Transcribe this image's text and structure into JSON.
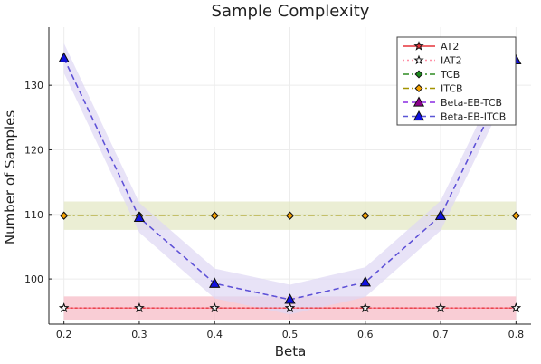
{
  "chart_data": {
    "type": "line",
    "title": "Sample Complexity",
    "xlabel": "Beta",
    "ylabel": "Number of Samples",
    "x": [
      0.2,
      0.3,
      0.4,
      0.5,
      0.6,
      0.7,
      0.8
    ],
    "xlim": [
      0.18,
      0.82
    ],
    "ylim": [
      93,
      139
    ],
    "xticks": [
      "0.2",
      "0.3",
      "0.4",
      "0.5",
      "0.6",
      "0.7",
      "0.8"
    ],
    "yticks": [
      100,
      110,
      120,
      130
    ],
    "grid": true,
    "legend_position": "top-right",
    "series": [
      {
        "name": "AT2",
        "values": [
          95.5,
          95.5,
          95.5,
          95.5,
          95.5,
          95.5,
          95.5
        ],
        "band": 1.8,
        "color": "#e6333a",
        "band_color": "#f6b8c4",
        "dash": "solid",
        "marker": "star",
        "marker_fill": "#e6333a"
      },
      {
        "name": "IAT2",
        "values": [
          95.5,
          95.5,
          95.5,
          95.5,
          95.5,
          95.5,
          95.5
        ],
        "band": 1.8,
        "color": "#ff8fa6",
        "band_color": "#f6b8c4",
        "dash": "dot",
        "marker": "star",
        "marker_fill": "#ffffff"
      },
      {
        "name": "TCB",
        "values": [
          109.8,
          109.8,
          109.8,
          109.8,
          109.8,
          109.8,
          109.8
        ],
        "band": 2.2,
        "color": "#2e8b22",
        "band_color": "#e2e6c2",
        "dash": "dashdot",
        "marker": "diamond",
        "marker_fill": "#1d8a1d"
      },
      {
        "name": "ITCB",
        "values": [
          109.8,
          109.8,
          109.8,
          109.8,
          109.8,
          109.8,
          109.8
        ],
        "band": 2.2,
        "color": "#a39300",
        "band_color": "#e2e6c2",
        "dash": "dashdot",
        "marker": "diamond",
        "marker_fill": "#f4a100"
      },
      {
        "name": "Beta-EB-TCB",
        "values": [
          134.2,
          109.5,
          99.3,
          96.8,
          99.5,
          109.8,
          133.9
        ],
        "band": 2.3,
        "color": "#8a2be2",
        "band_color": "#ddd6f3",
        "dash": "dash",
        "marker": "triangle",
        "marker_fill": "#8b008b"
      },
      {
        "name": "Beta-EB-ITCB",
        "values": [
          134.2,
          109.5,
          99.3,
          96.8,
          99.5,
          109.8,
          133.9
        ],
        "band": 2.3,
        "color": "#5a56d6",
        "band_color": "#ddd6f3",
        "dash": "dash",
        "marker": "triangle",
        "marker_fill": "#1010e0"
      }
    ]
  }
}
